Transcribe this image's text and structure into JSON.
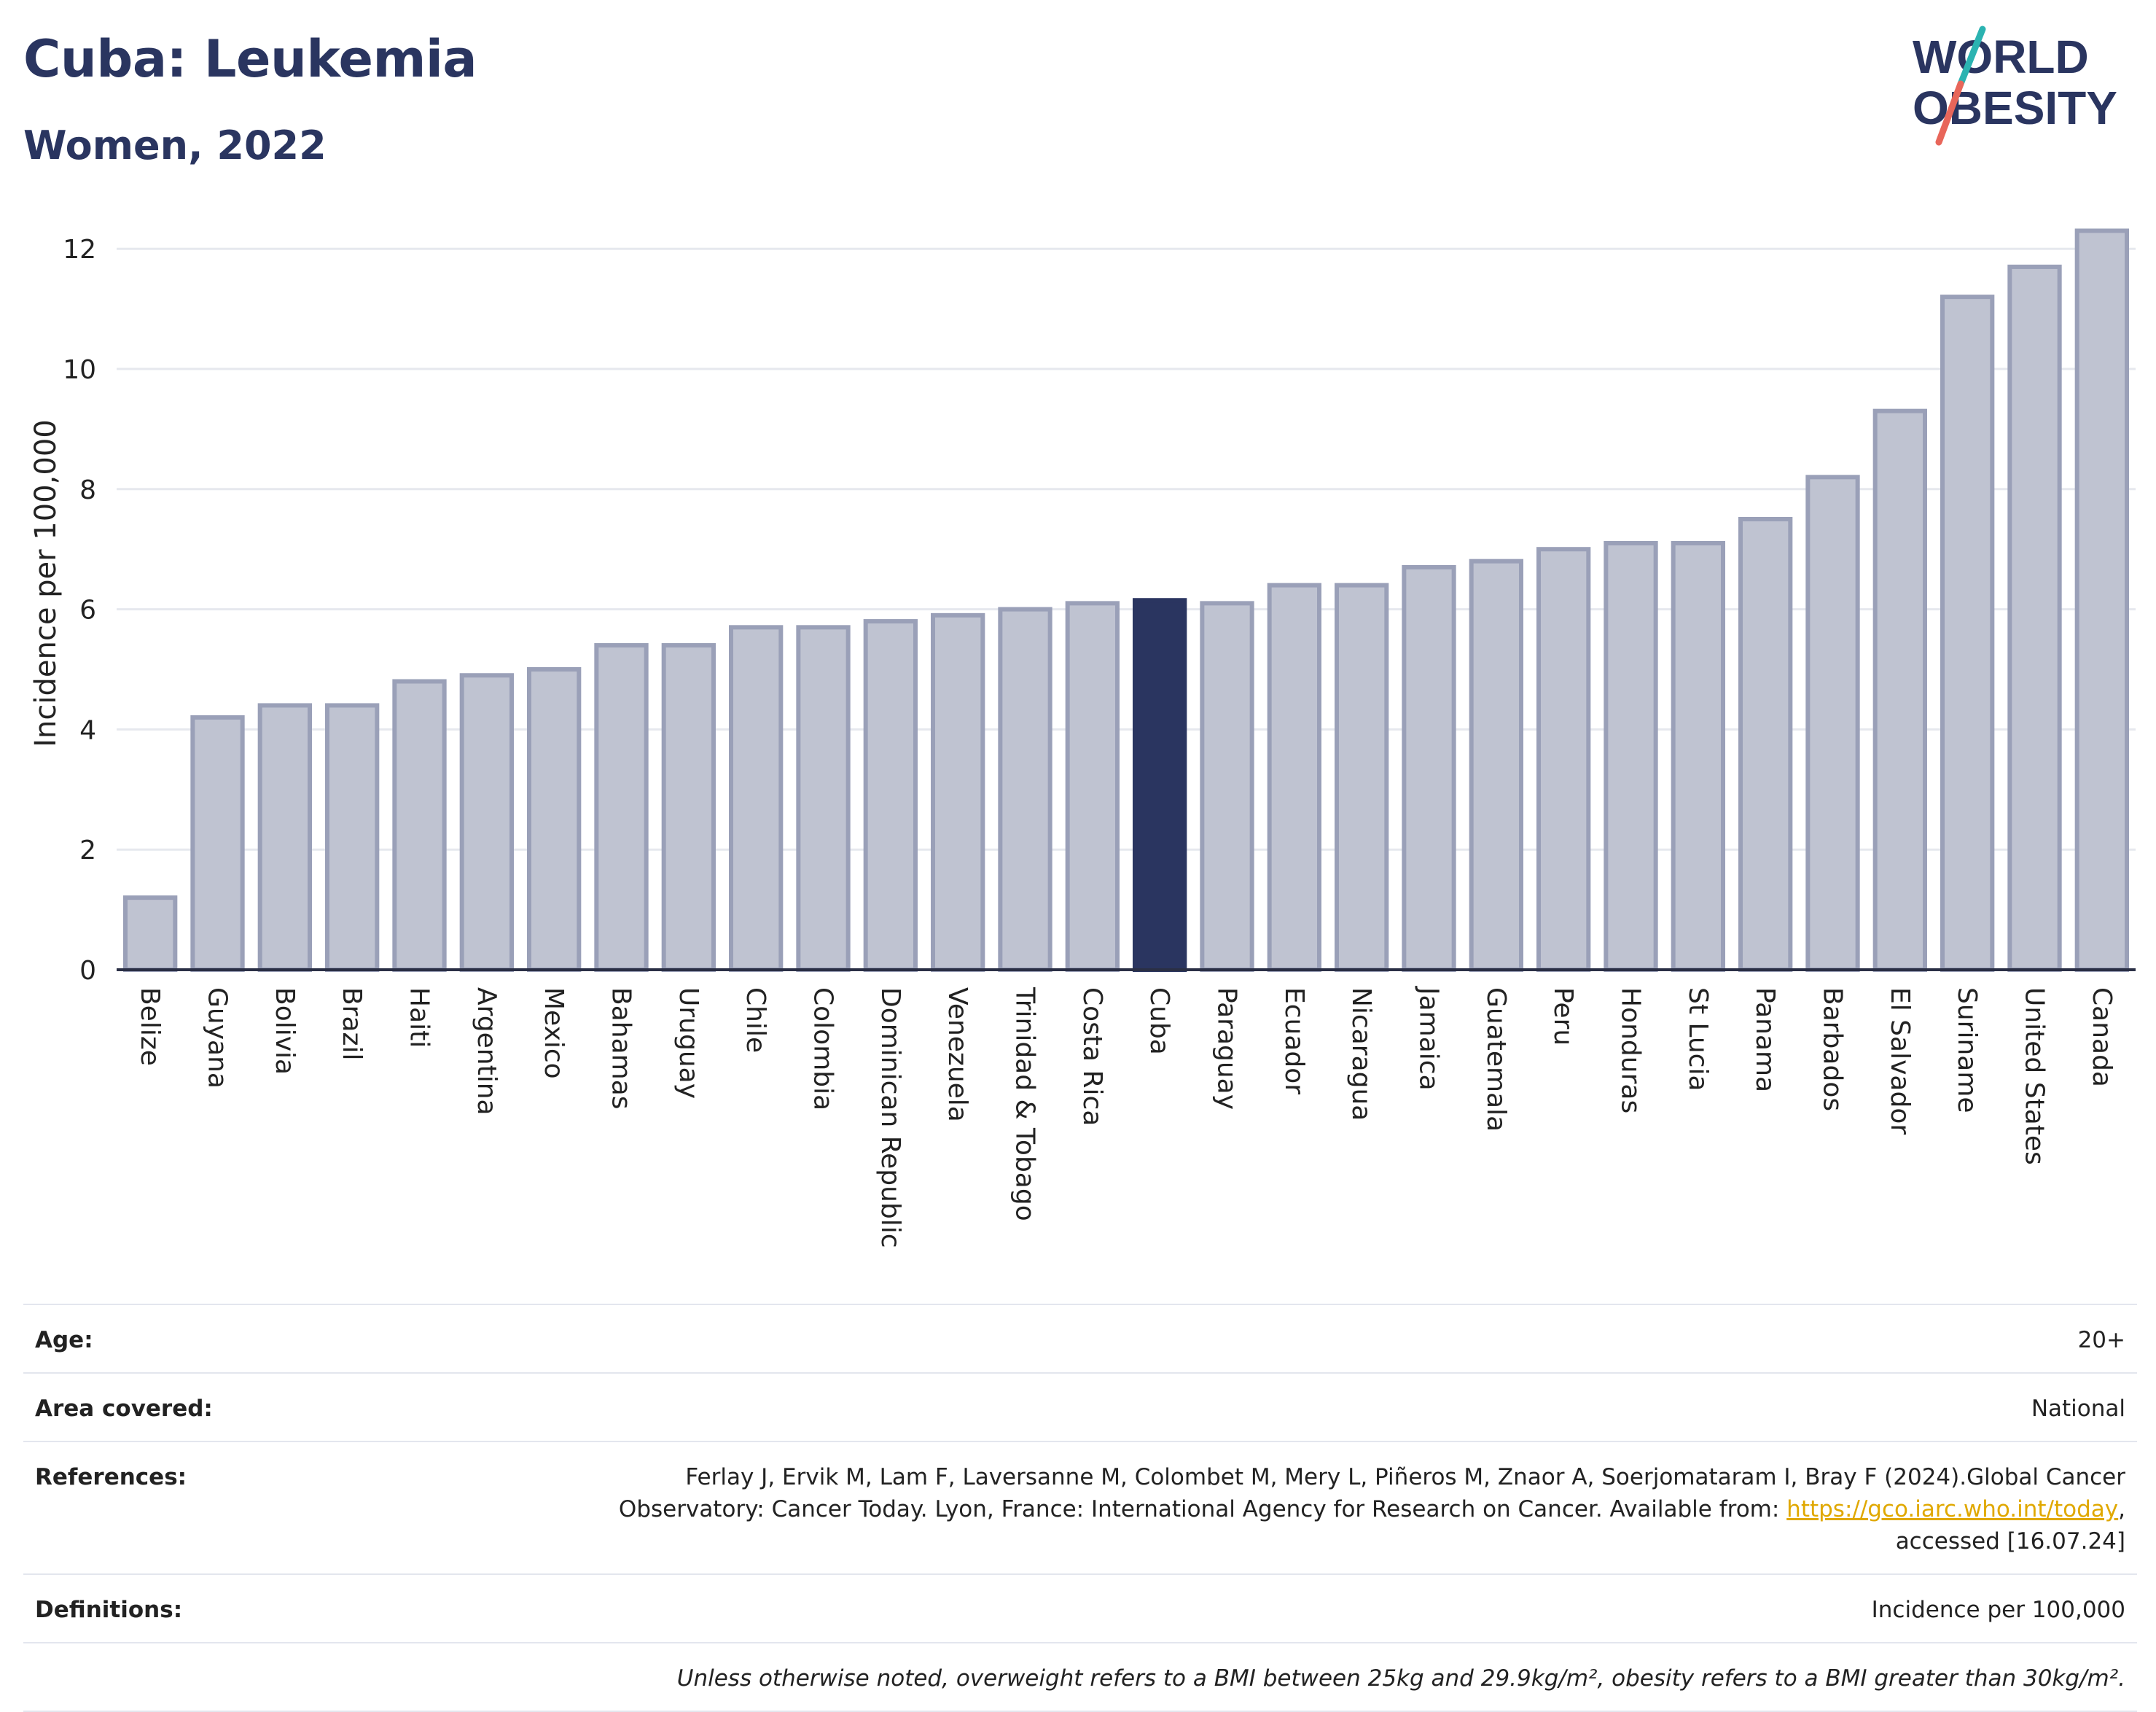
{
  "header": {
    "title": "Cuba: Leukemia",
    "subtitle": "Women, 2022"
  },
  "logo": {
    "line1": "WORLD",
    "line2": "OBESITY",
    "color": "#2a3560",
    "accent_teal": "#2bb3b1",
    "accent_coral": "#e8665a"
  },
  "chart_data": {
    "type": "bar",
    "categories": [
      "Belize",
      "Guyana",
      "Bolivia",
      "Brazil",
      "Haiti",
      "Argentina",
      "Mexico",
      "Bahamas",
      "Uruguay",
      "Chile",
      "Colombia",
      "Dominican Republic",
      "Venezuela",
      "Trinidad & Tobago",
      "Costa Rica",
      "Cuba",
      "Paraguay",
      "Ecuador",
      "Nicaragua",
      "Jamaica",
      "Guatemala",
      "Peru",
      "Honduras",
      "St Lucia",
      "Panama",
      "Barbados",
      "El Salvador",
      "Suriname",
      "United States",
      "Canada"
    ],
    "values": [
      1.2,
      4.2,
      4.4,
      4.4,
      4.8,
      4.9,
      5.0,
      5.4,
      5.4,
      5.7,
      5.7,
      5.8,
      5.9,
      6.0,
      6.1,
      6.15,
      6.1,
      6.4,
      6.4,
      6.7,
      6.8,
      7.0,
      7.1,
      7.1,
      7.5,
      8.2,
      9.3,
      11.2,
      11.7,
      12.3
    ],
    "highlight": "Cuba",
    "ylabel": "Incidence per 100,000",
    "xlabel": "",
    "ylim": [
      0,
      12.5
    ],
    "yticks": [
      0,
      2,
      4,
      6,
      8,
      10,
      12
    ],
    "grid": true,
    "colors": {
      "bar_fill": "#bfc3d1",
      "bar_stroke": "#9aa0b8",
      "highlight_fill": "#2a3560",
      "grid": "#e6e8ee",
      "axis": "#2a2f45"
    }
  },
  "meta": {
    "age": {
      "label": "Age:",
      "value": "20+"
    },
    "area": {
      "label": "Area covered:",
      "value": "National"
    },
    "references": {
      "label": "References:",
      "text_before_link": "Ferlay J, Ervik M, Lam F, Laversanne M, Colombet M, Mery L, Piñeros M, Znaor A, Soerjomataram I, Bray F (2024).Global Cancer Observatory: Cancer Today. Lyon, France: International Agency for Research on Cancer. Available from: ",
      "link": "https://gco.iarc.who.int/today",
      "text_after_link": ", accessed [16.07.24]"
    },
    "definitions": {
      "label": "Definitions:",
      "value": "Incidence per 100,000"
    },
    "note": "Unless otherwise noted, overweight refers to a BMI between 25kg and 29.9kg/m², obesity refers to a BMI greater than 30kg/m²."
  }
}
